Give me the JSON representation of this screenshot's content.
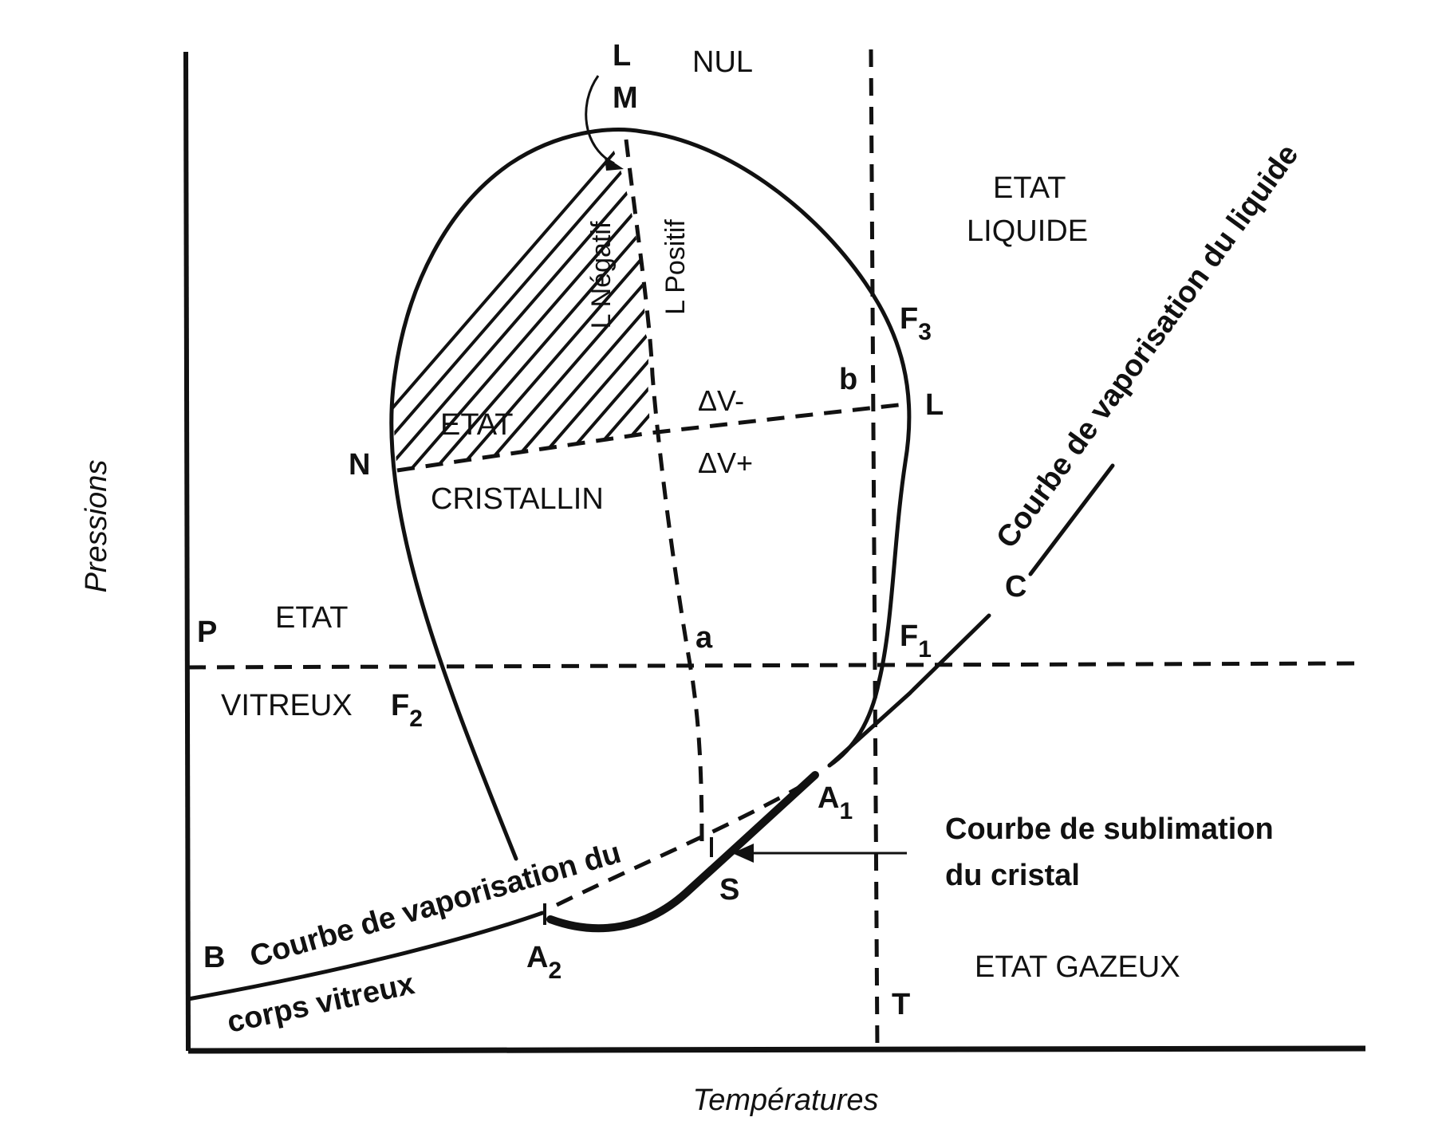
{
  "axes": {
    "x_label": "Températures",
    "y_label": "Pressions"
  },
  "regions": {
    "nul": "NUL",
    "liquid_1": "ETAT",
    "liquid_2": "LIQUIDE",
    "crystal_1": "ETAT",
    "crystal_2": "CRISTALLIN",
    "glass_1": "ETAT",
    "glass_2": "VITREUX",
    "gas": "ETAT GAZEUX"
  },
  "curves": {
    "liquid_vaporization": "Courbe de vaporisation du liquide",
    "glass_vaporization_1": "Courbe de vaporisation du",
    "glass_vaporization_2": "corps vitreux",
    "sublimation_1": "Courbe de sublimation",
    "sublimation_2": "du cristal"
  },
  "latent": {
    "negative": "L Négatif",
    "positive": "L Positif"
  },
  "volume": {
    "negative": "ΔV-",
    "positive": "ΔV+"
  },
  "points": {
    "L_top": "L",
    "M": "M",
    "N": "N",
    "L_right": "L",
    "b": "b",
    "a": "a",
    "P": "P",
    "B": "B",
    "C": "C",
    "S": "S",
    "T": "T",
    "F": "F",
    "A": "A",
    "F3_sub": "3",
    "F1_sub": "1",
    "F2_sub": "2",
    "A1_sub": "1",
    "A2_sub": "2"
  }
}
